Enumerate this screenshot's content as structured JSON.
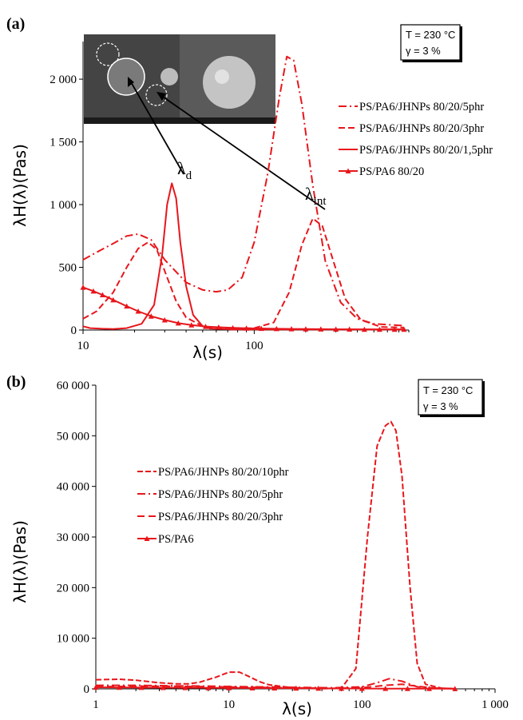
{
  "colors": {
    "series": "#e8161b",
    "axis": "#000000",
    "sem_dark": "#2b2b2b"
  },
  "chart_data": [
    {
      "panel": "(a)",
      "type": "line",
      "xscale": "log",
      "xlim": [
        10,
        800
      ],
      "ylim": [
        0,
        2300
      ],
      "xticks": [
        10,
        100
      ],
      "xtick_labels": [
        "10",
        "100"
      ],
      "yticks": [
        0,
        500,
        1000,
        1500,
        2000
      ],
      "ytick_labels": [
        "0",
        "500",
        "1 000",
        "1 500",
        "2 000"
      ],
      "xlabel": "λ(s)",
      "ylabel": "λH(λ)(Pas)",
      "grid": false,
      "conditions": [
        "T = 230 °C",
        "γ = 3 %"
      ],
      "legend_position": "right",
      "annotations": [
        {
          "base": "λ",
          "sub": "d",
          "x": 17.7,
          "y": 1280
        },
        {
          "base": "λ",
          "sub": "int",
          "x": 185,
          "y": 1110
        }
      ],
      "inset_image": "SEM micrographs of PS/PA6/JHNPs droplets",
      "series": [
        {
          "name": "PS/PA6/JHNPs 80/20/5phr",
          "dash": "10,4,2,4",
          "marker": false,
          "x": [
            10,
            12,
            15,
            18,
            21,
            25,
            30,
            40,
            50,
            60,
            70,
            85,
            100,
            120,
            140,
            155,
            170,
            190,
            220,
            260,
            320,
            400,
            500,
            650,
            750
          ],
          "y": [
            560,
            620,
            690,
            750,
            765,
            720,
            560,
            380,
            320,
            305,
            320,
            420,
            700,
            1250,
            1850,
            2180,
            2150,
            1800,
            1150,
            550,
            220,
            90,
            50,
            40,
            35
          ]
        },
        {
          "name": "PS/PA6/JHNPs 80/20/3phr",
          "dash": "8,4",
          "marker": false,
          "x": [
            10,
            12,
            15,
            18,
            21,
            24,
            27,
            30,
            35,
            40,
            50,
            60,
            80,
            100,
            130,
            160,
            190,
            220,
            250,
            290,
            340,
            420,
            550,
            750
          ],
          "y": [
            90,
            150,
            300,
            500,
            650,
            700,
            640,
            470,
            230,
            100,
            30,
            15,
            12,
            15,
            60,
            300,
            680,
            890,
            830,
            550,
            250,
            80,
            25,
            20
          ]
        },
        {
          "name": "PS/PA6/JHNPs 80/20/1,5phr",
          "dash": "",
          "marker": false,
          "x": [
            10,
            11,
            13,
            15,
            18,
            22,
            26,
            29,
            31,
            33,
            35,
            37,
            40,
            44,
            50,
            55,
            65,
            80,
            100,
            150,
            200,
            300,
            500,
            750
          ],
          "y": [
            30,
            15,
            10,
            8,
            15,
            50,
            200,
            600,
            1000,
            1170,
            1050,
            700,
            350,
            120,
            30,
            12,
            8,
            5,
            5,
            5,
            5,
            5,
            5,
            5
          ]
        },
        {
          "name": "PS/PA6 80/20",
          "dash": "",
          "marker": true,
          "x": [
            10,
            11.5,
            13,
            15,
            18,
            21,
            25,
            30,
            36,
            43,
            52,
            62,
            75,
            90,
            110,
            135,
            165,
            200,
            245,
            300,
            360,
            440,
            540,
            660,
            750
          ],
          "y": [
            340,
            310,
            280,
            240,
            190,
            150,
            110,
            80,
            55,
            40,
            28,
            22,
            17,
            14,
            12,
            10,
            9,
            8,
            7,
            6,
            6,
            5,
            5,
            5,
            5
          ]
        }
      ]
    },
    {
      "panel": "(b)",
      "type": "line",
      "xscale": "log",
      "xlim": [
        1,
        1000
      ],
      "ylim": [
        0,
        60000
      ],
      "xticks": [
        1,
        10,
        100,
        1000
      ],
      "xtick_labels": [
        "1",
        "10",
        "100",
        "1 000"
      ],
      "yticks": [
        0,
        10000,
        20000,
        30000,
        40000,
        50000,
        60000
      ],
      "ytick_labels": [
        "0",
        "10 000",
        "20 000",
        "30 000",
        "40 000",
        "50 000",
        "60 000"
      ],
      "xlabel": "λ(s)",
      "ylabel": "λH(λ)(Pas)",
      "grid": false,
      "conditions": [
        "T = 230 °C",
        "γ = 3 %"
      ],
      "legend_position": "middle-left",
      "series": [
        {
          "name": "PS/PA6/JHNPs 80/20/10phr",
          "dash": "7,3",
          "marker": false,
          "x": [
            1,
            1.5,
            2,
            3,
            4,
            5,
            6,
            8,
            10,
            12,
            14,
            17,
            20,
            30,
            50,
            70,
            90,
            110,
            130,
            150,
            165,
            180,
            200,
            230,
            260,
            300,
            400,
            500
          ],
          "y": [
            1800,
            1900,
            1700,
            1200,
            1000,
            1000,
            1300,
            2300,
            3300,
            3300,
            2500,
            1400,
            800,
            200,
            50,
            100,
            4000,
            30000,
            48000,
            52000,
            52800,
            51000,
            42000,
            20000,
            5000,
            900,
            100,
            50
          ]
        },
        {
          "name": "PS/PA6/JHNPs 80/20/5phr",
          "dash": "10,4,2,4",
          "marker": false,
          "x": [
            1,
            2,
            4,
            8,
            15,
            30,
            60,
            100,
            130,
            160,
            200,
            260,
            350,
            500
          ],
          "y": [
            700,
            700,
            600,
            500,
            400,
            300,
            200,
            400,
            1200,
            2000,
            1500,
            400,
            100,
            50
          ]
        },
        {
          "name": "PS/PA6/JHNPs 80/20/3phr",
          "dash": "9,5",
          "marker": false,
          "x": [
            1,
            2,
            4,
            8,
            15,
            30,
            60,
            100,
            150,
            200,
            260,
            350,
            500
          ],
          "y": [
            400,
            500,
            500,
            400,
            300,
            200,
            100,
            200,
            700,
            900,
            500,
            150,
            50
          ]
        },
        {
          "name": "PS/PA6",
          "dash": "",
          "marker": true,
          "x": [
            1,
            1.5,
            2.2,
            3.2,
            4.7,
            7,
            10,
            15,
            22,
            32,
            47,
            70,
            100,
            150,
            220,
            320,
            500
          ],
          "y": [
            300,
            280,
            260,
            240,
            220,
            200,
            180,
            160,
            140,
            120,
            100,
            80,
            60,
            50,
            40,
            30,
            20
          ]
        }
      ]
    }
  ]
}
